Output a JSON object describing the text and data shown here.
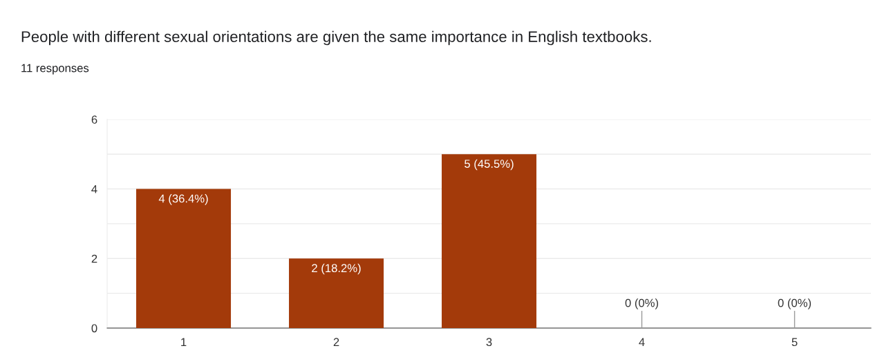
{
  "chart_data": {
    "type": "bar",
    "title": "People with different sexual orientations are given the same importance in English textbooks.",
    "subtitle": "11 responses",
    "categories": [
      "1",
      "2",
      "3",
      "4",
      "5"
    ],
    "values": [
      4,
      2,
      5,
      0,
      0
    ],
    "value_labels": [
      "4 (36.4%)",
      "2 (18.2%)",
      "5 (45.5%)",
      "0 (0%)",
      "0 (0%)"
    ],
    "color": "#a33a0a",
    "ylim": [
      0,
      6
    ],
    "yticks": [
      0,
      {
        "value": 1,
        "label": null
      },
      2,
      {
        "value": 3,
        "label": null
      },
      4,
      {
        "value": 5,
        "label": null
      },
      6
    ],
    "grid": "y"
  }
}
